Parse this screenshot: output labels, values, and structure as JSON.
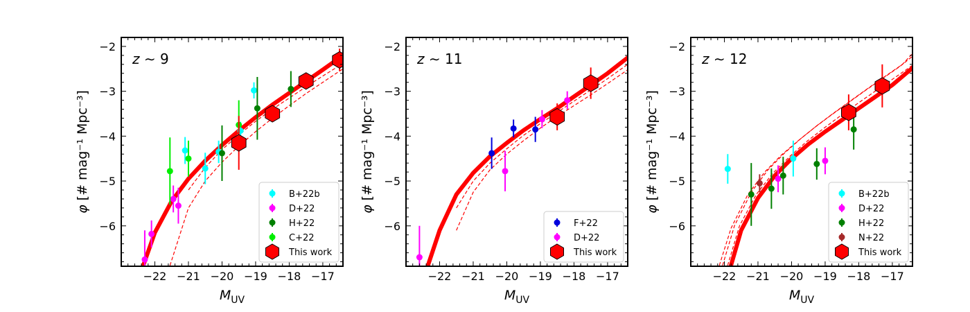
{
  "chart_data": [
    {
      "type": "scatter",
      "annotation": "z ∼ 9",
      "xlabel": "M_UV",
      "ylabel": "φ [# mag⁻¹ Mpc⁻³]",
      "xlim": [
        -23.0,
        -16.4
      ],
      "ylim": [
        -6.9,
        -1.8
      ],
      "xticks": [
        "−22",
        "−21",
        "−20",
        "−19",
        "−18",
        "−17"
      ],
      "yticks": [
        "−2",
        "−3",
        "−4",
        "−5",
        "−6"
      ],
      "legend_position": "lower right",
      "model": {
        "best_fit": [
          [
            -22.4,
            -7.0
          ],
          [
            -22.0,
            -6.15
          ],
          [
            -21.5,
            -5.45
          ],
          [
            -21.0,
            -4.95
          ],
          [
            -20.5,
            -4.55
          ],
          [
            -20.0,
            -4.2
          ],
          [
            -19.5,
            -3.88
          ],
          [
            -19.0,
            -3.58
          ],
          [
            -18.5,
            -3.3
          ],
          [
            -18.0,
            -3.04
          ],
          [
            -17.5,
            -2.78
          ],
          [
            -17.0,
            -2.52
          ],
          [
            -16.4,
            -2.2
          ]
        ],
        "bounds": [
          [
            [
              -21.6,
              -7.0
            ],
            [
              -21.0,
              -5.6
            ],
            [
              -20.5,
              -5.0
            ],
            [
              -20.0,
              -4.58
            ],
            [
              -19.5,
              -4.22
            ],
            [
              -19.0,
              -3.9
            ],
            [
              -18.5,
              -3.6
            ],
            [
              -18.0,
              -3.32
            ],
            [
              -17.5,
              -3.05
            ],
            [
              -17.0,
              -2.8
            ],
            [
              -16.4,
              -2.5
            ]
          ],
          [
            [
              -21.0,
              -5.2
            ],
            [
              -20.5,
              -4.7
            ],
            [
              -20.0,
              -4.3
            ],
            [
              -19.5,
              -3.97
            ],
            [
              -19.0,
              -3.67
            ],
            [
              -18.5,
              -3.4
            ],
            [
              -18.0,
              -3.15
            ],
            [
              -17.5,
              -2.9
            ],
            [
              -17.0,
              -2.66
            ],
            [
              -16.4,
              -2.38
            ]
          ]
        ]
      },
      "series": [
        {
          "name": "B+22b",
          "color": "#00ffff",
          "points": [
            [
              -21.1,
              -4.32,
              0.3
            ],
            [
              -20.5,
              -4.72,
              0.35
            ],
            [
              -20.1,
              -4.35,
              0.25
            ],
            [
              -19.45,
              -3.88,
              0.2
            ],
            [
              -19.05,
              -2.98,
              0.18
            ]
          ]
        },
        {
          "name": "D+22",
          "color": "#ff00ff",
          "points": [
            [
              -22.3,
              -6.75,
              0.65
            ],
            [
              -22.1,
              -6.18,
              0.3
            ],
            [
              -21.45,
              -5.4,
              0.3
            ],
            [
              -21.3,
              -5.55,
              0.4
            ]
          ]
        },
        {
          "name": "H+22",
          "color": "#008000",
          "points": [
            [
              -20.0,
              -4.38,
              0.62
            ],
            [
              -18.95,
              -3.38,
              0.7
            ],
            [
              -17.95,
              -2.95,
              0.4
            ]
          ]
        },
        {
          "name": "C+22",
          "color": "#00ee00",
          "points": [
            [
              -21.55,
              -4.78,
              0.75
            ],
            [
              -21.0,
              -4.5,
              0.4
            ],
            [
              -19.5,
              -3.75,
              0.55
            ]
          ]
        },
        {
          "name": "This work",
          "color": "#ff0000",
          "marker": "hexagon",
          "points": [
            [
              -19.5,
              -4.15,
              0.6
            ],
            [
              -18.5,
              -3.5,
              0.15
            ],
            [
              -17.5,
              -2.77,
              0.12
            ],
            [
              -16.5,
              -2.3,
              0.25
            ]
          ]
        }
      ]
    },
    {
      "type": "scatter",
      "annotation": "z ∼ 11",
      "xlabel": "M_UV",
      "ylabel": "φ [# mag⁻¹ Mpc⁻³]",
      "xlim": [
        -23.0,
        -16.4
      ],
      "ylim": [
        -6.9,
        -1.8
      ],
      "xticks": [
        "−22",
        "−21",
        "−20",
        "−19",
        "−18",
        "−17"
      ],
      "yticks": [
        "−2",
        "−3",
        "−4",
        "−5",
        "−6"
      ],
      "legend_position": "lower right",
      "model": {
        "best_fit": [
          [
            -22.4,
            -7.0
          ],
          [
            -22.0,
            -6.1
          ],
          [
            -21.5,
            -5.3
          ],
          [
            -21.0,
            -4.82
          ],
          [
            -20.5,
            -4.45
          ],
          [
            -20.0,
            -4.15
          ],
          [
            -19.5,
            -3.87
          ],
          [
            -19.0,
            -3.62
          ],
          [
            -18.5,
            -3.38
          ],
          [
            -18.0,
            -3.12
          ],
          [
            -17.5,
            -2.86
          ],
          [
            -17.0,
            -2.6
          ],
          [
            -16.4,
            -2.25
          ]
        ],
        "bounds": [
          [
            [
              -21.5,
              -6.1
            ],
            [
              -21.0,
              -5.25
            ],
            [
              -20.5,
              -4.75
            ],
            [
              -20.0,
              -4.4
            ],
            [
              -19.5,
              -4.1
            ],
            [
              -19.0,
              -3.82
            ],
            [
              -18.5,
              -3.56
            ],
            [
              -18.0,
              -3.32
            ],
            [
              -17.5,
              -3.08
            ],
            [
              -17.0,
              -2.83
            ],
            [
              -16.4,
              -2.52
            ]
          ],
          [
            [
              -21.5,
              -5.6
            ],
            [
              -21.0,
              -5.0
            ],
            [
              -20.5,
              -4.6
            ],
            [
              -20.0,
              -4.28
            ],
            [
              -19.5,
              -3.98
            ],
            [
              -19.0,
              -3.72
            ],
            [
              -18.5,
              -3.47
            ],
            [
              -18.0,
              -3.22
            ],
            [
              -17.5,
              -2.97
            ],
            [
              -17.0,
              -2.72
            ],
            [
              -16.4,
              -2.4
            ]
          ]
        ]
      },
      "series": [
        {
          "name": "F+22",
          "color": "#0000dd",
          "points": [
            [
              -20.45,
              -4.38,
              0.35
            ],
            [
              -19.8,
              -3.83,
              0.2
            ],
            [
              -19.15,
              -3.85,
              0.28
            ]
          ]
        },
        {
          "name": "D+22",
          "color": "#ff00ff",
          "points": [
            [
              -22.6,
              -6.7,
              0.7
            ],
            [
              -20.05,
              -4.78,
              0.45
            ],
            [
              -18.95,
              -3.62,
              0.2
            ],
            [
              -18.2,
              -3.2,
              0.2
            ]
          ]
        },
        {
          "name": "This work",
          "color": "#ff0000",
          "marker": "hexagon",
          "points": [
            [
              -18.5,
              -3.57,
              0.3
            ],
            [
              -17.5,
              -2.82,
              0.35
            ]
          ]
        }
      ]
    },
    {
      "type": "scatter",
      "annotation": "z ∼ 12",
      "xlabel": "M_UV",
      "ylabel": "φ [# mag⁻¹ Mpc⁻³]",
      "xlim": [
        -23.0,
        -16.4
      ],
      "ylim": [
        -6.9,
        -1.8
      ],
      "xticks": [
        "−22",
        "−21",
        "−20",
        "−19",
        "−18",
        "−17"
      ],
      "yticks": [
        "−2",
        "−3",
        "−4",
        "−5",
        "−6"
      ],
      "legend_position": "lower right",
      "model": {
        "best_fit": [
          [
            -21.85,
            -7.0
          ],
          [
            -21.5,
            -6.1
          ],
          [
            -21.0,
            -5.38
          ],
          [
            -20.5,
            -4.88
          ],
          [
            -20.0,
            -4.5
          ],
          [
            -19.5,
            -4.18
          ],
          [
            -19.0,
            -3.9
          ],
          [
            -18.5,
            -3.64
          ],
          [
            -18.0,
            -3.38
          ],
          [
            -17.5,
            -3.12
          ],
          [
            -17.0,
            -2.86
          ],
          [
            -16.4,
            -2.48
          ]
        ],
        "bounds": [
          [
            [
              -22.2,
              -7.0
            ],
            [
              -21.8,
              -6.05
            ],
            [
              -21.3,
              -5.3
            ],
            [
              -20.8,
              -4.8
            ],
            [
              -20.3,
              -4.42
            ],
            [
              -19.8,
              -4.1
            ],
            [
              -19.3,
              -3.8
            ],
            [
              -18.8,
              -3.52
            ],
            [
              -18.3,
              -3.25
            ],
            [
              -17.8,
              -2.98
            ],
            [
              -17.3,
              -2.72
            ],
            [
              -16.8,
              -2.46
            ],
            [
              -16.4,
              -2.22
            ]
          ],
          [
            [
              -22.1,
              -7.0
            ],
            [
              -21.7,
              -6.0
            ],
            [
              -21.2,
              -5.25
            ],
            [
              -20.7,
              -4.75
            ],
            [
              -20.2,
              -4.37
            ],
            [
              -19.7,
              -4.04
            ],
            [
              -19.2,
              -3.74
            ],
            [
              -18.7,
              -3.46
            ],
            [
              -18.2,
              -3.19
            ],
            [
              -17.7,
              -2.92
            ],
            [
              -17.2,
              -2.66
            ],
            [
              -16.7,
              -2.4
            ],
            [
              -16.4,
              -2.16
            ]
          ],
          [
            [
              -21.95,
              -7.0
            ],
            [
              -21.55,
              -6.0
            ],
            [
              -21.05,
              -5.3
            ],
            [
              -20.55,
              -4.82
            ],
            [
              -20.05,
              -4.45
            ],
            [
              -19.55,
              -4.12
            ],
            [
              -19.05,
              -3.83
            ],
            [
              -18.55,
              -3.55
            ],
            [
              -18.05,
              -3.28
            ],
            [
              -17.55,
              -3.02
            ],
            [
              -17.05,
              -2.76
            ],
            [
              -16.55,
              -2.5
            ],
            [
              -16.4,
              -2.42
            ]
          ]
        ]
      },
      "series": [
        {
          "name": "B+22b",
          "color": "#00ffff",
          "points": [
            [
              -21.9,
              -4.73,
              0.33
            ],
            [
              -19.95,
              -4.5,
              0.4
            ]
          ]
        },
        {
          "name": "D+22",
          "color": "#ff00ff",
          "points": [
            [
              -20.4,
              -4.95,
              0.3
            ],
            [
              -19.0,
              -4.55,
              0.3
            ]
          ]
        },
        {
          "name": "H+22",
          "color": "#008000",
          "points": [
            [
              -21.2,
              -5.3,
              0.7
            ],
            [
              -20.6,
              -5.17,
              0.45
            ],
            [
              -20.25,
              -4.88,
              0.42
            ],
            [
              -19.25,
              -4.62,
              0.35
            ],
            [
              -18.15,
              -3.85,
              0.45
            ]
          ]
        },
        {
          "name": "N+22",
          "color": "#a52a2a",
          "points": [
            [
              -20.95,
              -5.05,
              0.2
            ]
          ]
        },
        {
          "name": "This work",
          "color": "#ff0000",
          "marker": "hexagon",
          "points": [
            [
              -18.3,
              -3.47,
              0.4
            ],
            [
              -17.3,
              -2.88,
              0.48
            ]
          ]
        }
      ]
    }
  ]
}
